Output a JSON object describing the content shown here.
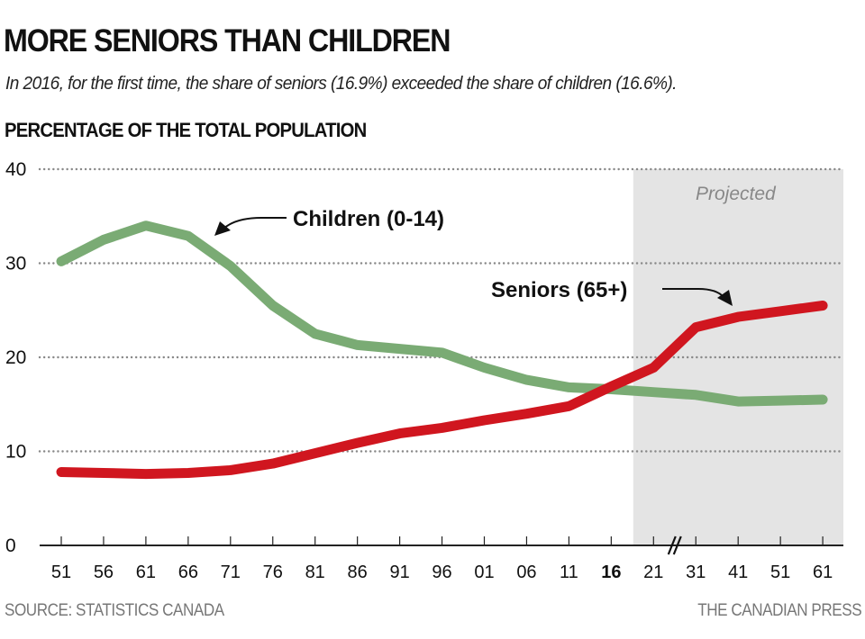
{
  "header": {
    "title": "MORE SENIORS THAN CHILDREN",
    "subtitle": "In 2016, for the first time, the share of seniors (16.9%) exceeded the share of children (16.6%).",
    "axis_heading": "PERCENTAGE OF THE TOTAL POPULATION"
  },
  "footer": {
    "source": "SOURCE: STATISTICS CANADA",
    "credit": "THE CANADIAN PRESS"
  },
  "colors": {
    "children": "#7aab74",
    "seniors": "#d0161f",
    "projected_band": "#e4e4e4",
    "grid": "#888888",
    "axis": "#222222"
  },
  "chart_data": {
    "type": "line",
    "title": "MORE SENIORS THAN CHILDREN",
    "subtitle": "In 2016, for the first time, the share of seniors (16.9%) exceeded the share of children (16.6%).",
    "ylabel": "PERCENTAGE OF THE TOTAL POPULATION",
    "xlabel": "",
    "ylim": [
      0,
      40
    ],
    "yticks": [
      "0",
      "10",
      "20",
      "30",
      "40"
    ],
    "grid": true,
    "categories": [
      "51",
      "56",
      "61",
      "66",
      "71",
      "76",
      "81",
      "86",
      "91",
      "96",
      "01",
      "06",
      "11",
      "16",
      "21",
      "31",
      "41",
      "51",
      "61"
    ],
    "x_years": [
      1951,
      1956,
      1961,
      1966,
      1971,
      1976,
      1981,
      1986,
      1991,
      1996,
      2001,
      2006,
      2011,
      2016,
      2021,
      2031,
      2041,
      2051,
      2061
    ],
    "highlighted_tick": "16",
    "axis_break_between": [
      "21",
      "31"
    ],
    "projected_from_index": 13.5,
    "projected_label": "Projected",
    "series": [
      {
        "name": "Children (0-14)",
        "label": "Children (0-14)",
        "values": [
          30.2,
          32.5,
          34.0,
          32.9,
          29.7,
          25.5,
          22.5,
          21.3,
          20.9,
          20.5,
          18.9,
          17.6,
          16.8,
          16.6,
          16.3,
          16.0,
          15.3,
          15.4,
          15.5
        ]
      },
      {
        "name": "Seniors (65+)",
        "label": "Seniors (65+)",
        "values": [
          7.8,
          7.7,
          7.6,
          7.7,
          8.0,
          8.7,
          9.8,
          10.9,
          11.9,
          12.5,
          13.3,
          14.0,
          14.8,
          16.9,
          18.9,
          23.2,
          24.3,
          24.9,
          25.5
        ]
      }
    ],
    "legend": "inline-annotations"
  }
}
